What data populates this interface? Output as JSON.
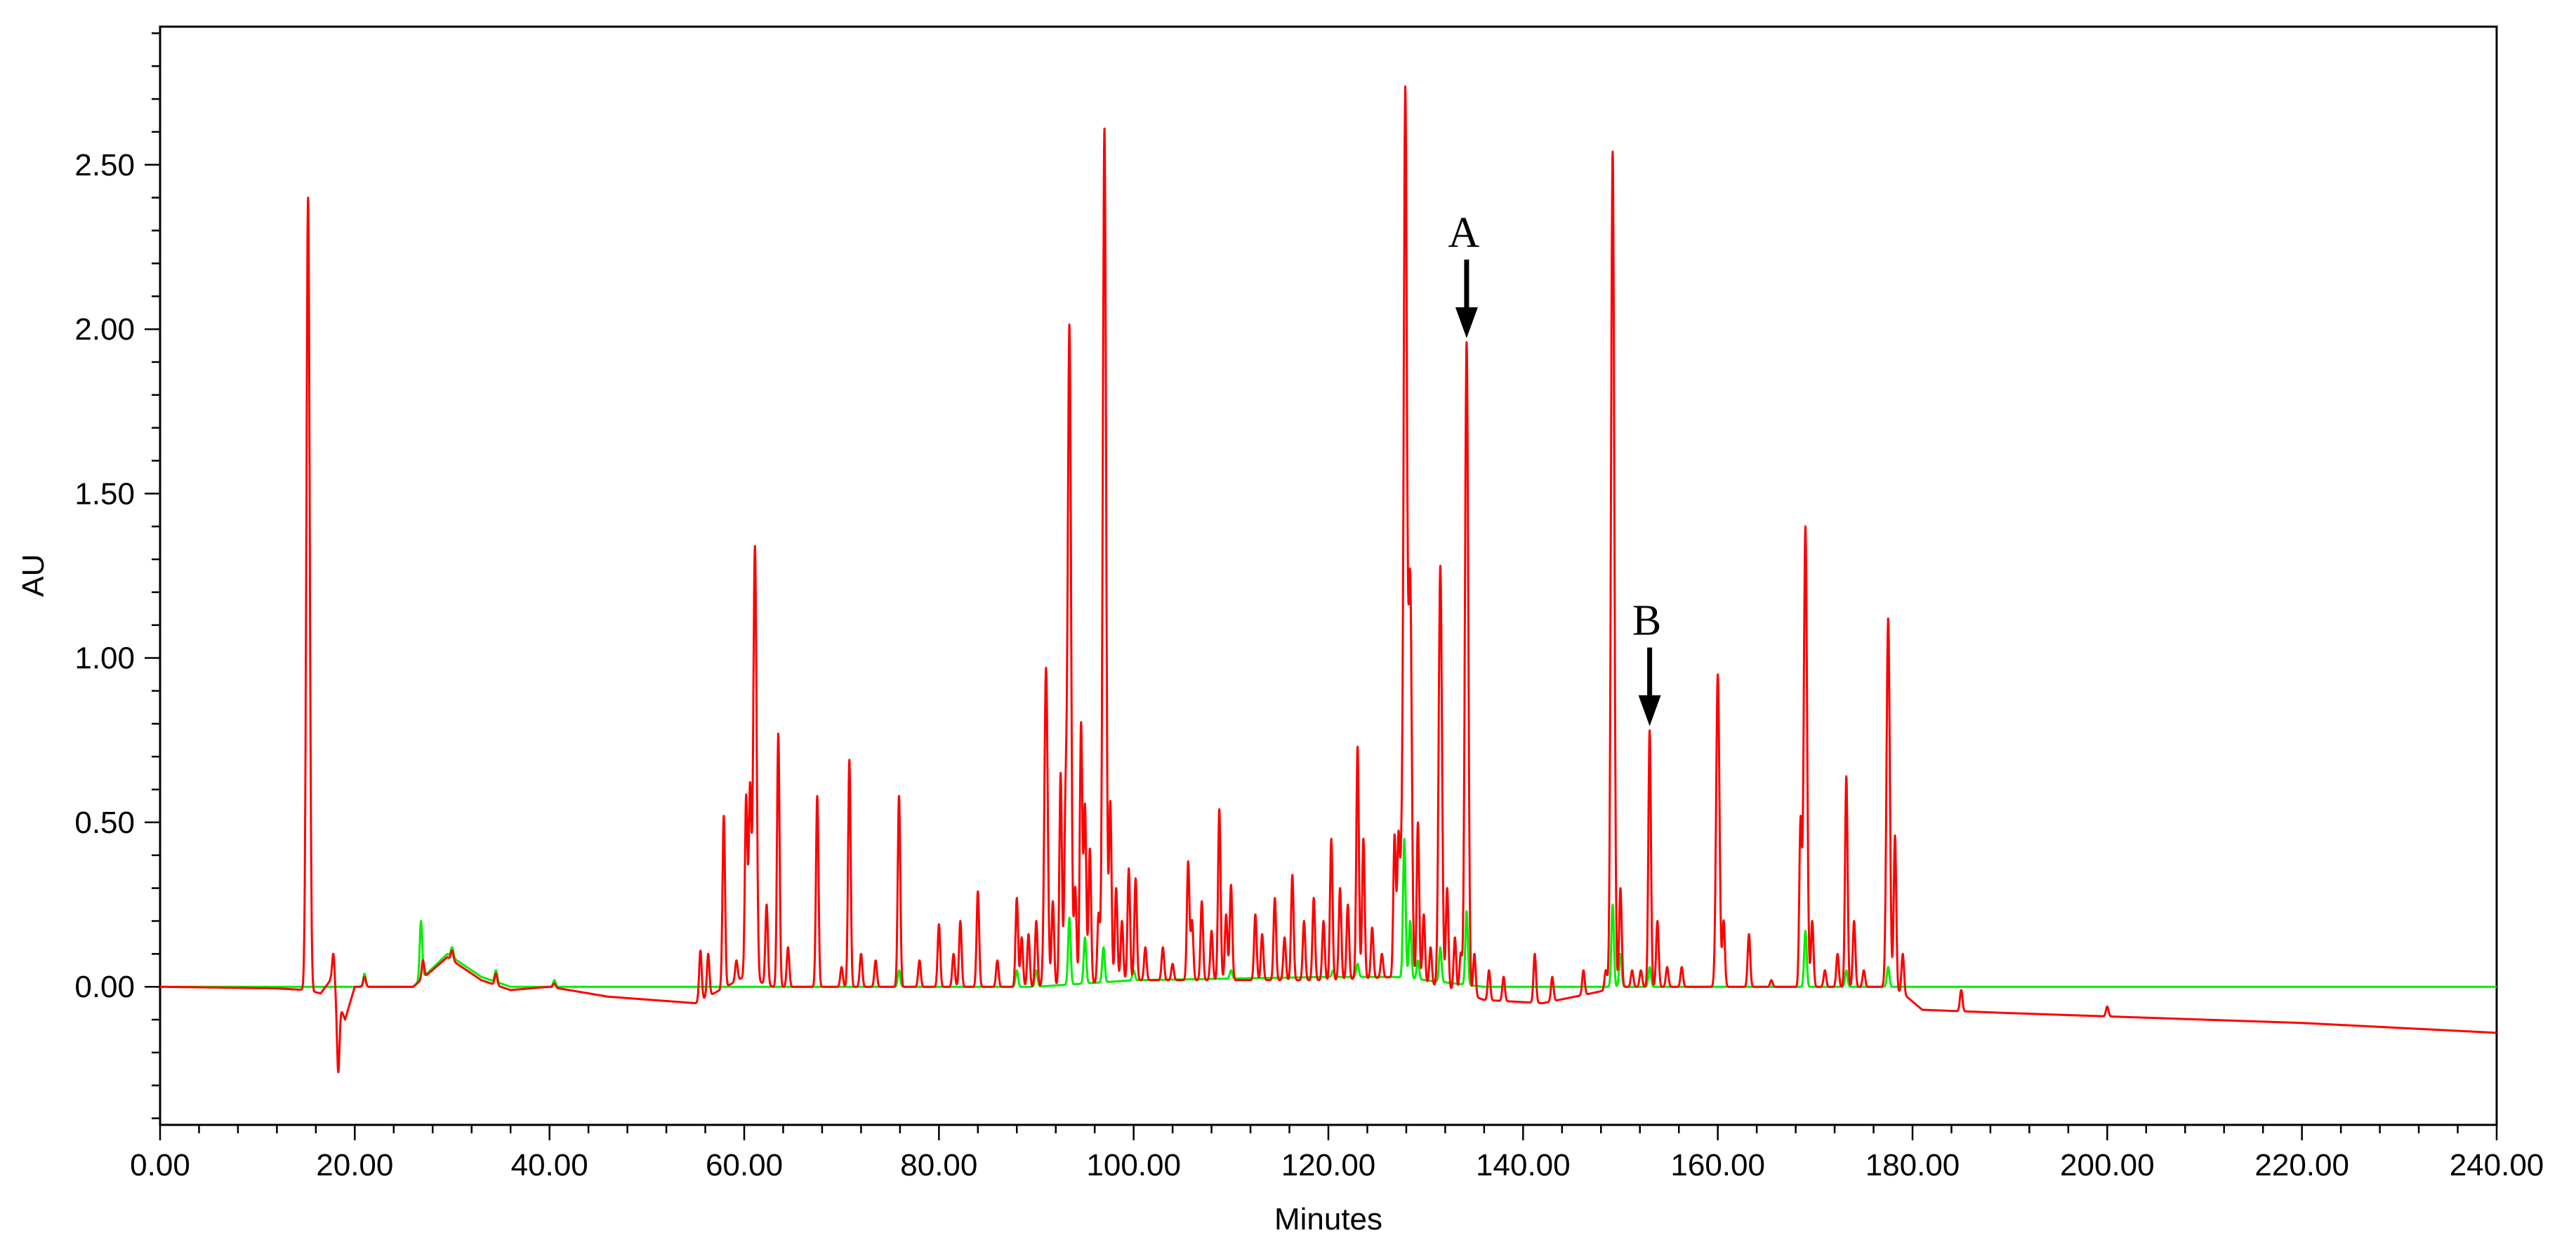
{
  "chart_data": {
    "type": "line",
    "xlabel": "Minutes",
    "ylabel": "AU",
    "xlim": [
      0,
      240
    ],
    "ylim": [
      -0.42,
      2.92
    ],
    "x_ticks": [
      "0.00",
      "20.00",
      "40.00",
      "60.00",
      "80.00",
      "100.00",
      "120.00",
      "140.00",
      "160.00",
      "180.00",
      "200.00",
      "220.00",
      "240.00"
    ],
    "y_ticks": [
      "0.00",
      "0.50",
      "1.00",
      "1.50",
      "2.00",
      "2.50"
    ],
    "grid": false,
    "legend": "none",
    "series": [
      {
        "color": "#ff0000",
        "baseline": [
          [
            0,
            0.0
          ],
          [
            12,
            -0.005
          ],
          [
            15,
            -0.01
          ],
          [
            16.5,
            -0.02
          ],
          [
            17.5,
            0.02
          ],
          [
            19,
            -0.1
          ],
          [
            20,
            0.0
          ],
          [
            26,
            0.0
          ],
          [
            29.5,
            0.09
          ],
          [
            33,
            0.02
          ],
          [
            36,
            -0.01
          ],
          [
            40,
            0.0
          ],
          [
            46,
            -0.03
          ],
          [
            55,
            -0.05
          ],
          [
            60,
            0.03
          ],
          [
            63,
            0.0
          ],
          [
            70,
            0.0
          ],
          [
            80,
            0.0
          ],
          [
            90,
            0.0
          ],
          [
            100,
            0.02
          ],
          [
            120,
            0.02
          ],
          [
            127,
            0.03
          ],
          [
            133,
            -0.01
          ],
          [
            136,
            -0.04
          ],
          [
            142,
            -0.05
          ],
          [
            147,
            -0.02
          ],
          [
            150,
            0.0
          ],
          [
            155,
            0.0
          ],
          [
            160,
            0.0
          ],
          [
            165,
            0.0
          ],
          [
            172,
            0.0
          ],
          [
            177,
            0.0
          ],
          [
            179,
            -0.02
          ],
          [
            181,
            -0.07
          ],
          [
            190,
            -0.08
          ],
          [
            200,
            -0.09
          ],
          [
            220,
            -0.11
          ],
          [
            240,
            -0.14
          ]
        ],
        "peaks": [
          [
            15.2,
            2.4
          ],
          [
            17.8,
            0.1
          ],
          [
            18.3,
            -0.26
          ],
          [
            21,
            0.03
          ],
          [
            27,
            0.08
          ],
          [
            30,
            0.11
          ],
          [
            34.5,
            0.04
          ],
          [
            40.5,
            0.01
          ],
          [
            55.5,
            0.11
          ],
          [
            56.3,
            0.1
          ],
          [
            57.9,
            0.52
          ],
          [
            59.2,
            0.08
          ],
          [
            60.2,
            0.58
          ],
          [
            60.6,
            0.6
          ],
          [
            61.1,
            1.34
          ],
          [
            62.3,
            0.25
          ],
          [
            63.5,
            0.77
          ],
          [
            64.5,
            0.12
          ],
          [
            67.5,
            0.58
          ],
          [
            70,
            0.06
          ],
          [
            70.8,
            0.69
          ],
          [
            72,
            0.1
          ],
          [
            73.5,
            0.08
          ],
          [
            75.9,
            0.58
          ],
          [
            78,
            0.08
          ],
          [
            80,
            0.19
          ],
          [
            81.5,
            0.1
          ],
          [
            82.2,
            0.2
          ],
          [
            84,
            0.29
          ],
          [
            86,
            0.08
          ],
          [
            88,
            0.27
          ],
          [
            88.5,
            0.15
          ],
          [
            89.2,
            0.16
          ],
          [
            90,
            0.2
          ],
          [
            91,
            0.97
          ],
          [
            91.7,
            0.26
          ],
          [
            92.5,
            0.65
          ],
          [
            93,
            0.5
          ],
          [
            93.4,
            2.01
          ],
          [
            94,
            0.3
          ],
          [
            94.6,
            0.8
          ],
          [
            95,
            0.55
          ],
          [
            95.5,
            0.42
          ],
          [
            96.4,
            0.22
          ],
          [
            97,
            2.61
          ],
          [
            97.6,
            0.56
          ],
          [
            98.2,
            0.3
          ],
          [
            98.8,
            0.2
          ],
          [
            99.5,
            0.36
          ],
          [
            100.2,
            0.33
          ],
          [
            101.2,
            0.12
          ],
          [
            103,
            0.12
          ],
          [
            104,
            0.07
          ],
          [
            105.6,
            0.38
          ],
          [
            106,
            0.2
          ],
          [
            107,
            0.26
          ],
          [
            108,
            0.17
          ],
          [
            108.8,
            0.54
          ],
          [
            109.5,
            0.22
          ],
          [
            110,
            0.31
          ],
          [
            112.5,
            0.22
          ],
          [
            113.2,
            0.16
          ],
          [
            114.5,
            0.27
          ],
          [
            115.5,
            0.15
          ],
          [
            116.3,
            0.34
          ],
          [
            117.5,
            0.2
          ],
          [
            118.5,
            0.27
          ],
          [
            119.5,
            0.2
          ],
          [
            120.3,
            0.45
          ],
          [
            121.2,
            0.3
          ],
          [
            122,
            0.25
          ],
          [
            123,
            0.73
          ],
          [
            123.6,
            0.45
          ],
          [
            124.5,
            0.18
          ],
          [
            125.5,
            0.1
          ],
          [
            126.8,
            0.46
          ],
          [
            127.2,
            0.45
          ],
          [
            127.5,
            0.3
          ],
          [
            127.9,
            2.72
          ],
          [
            128.4,
            1.23
          ],
          [
            129.2,
            0.5
          ],
          [
            129.8,
            0.22
          ],
          [
            130.5,
            0.12
          ],
          [
            131.5,
            1.28
          ],
          [
            132.2,
            0.3
          ],
          [
            133,
            0.15
          ],
          [
            133.6,
            0.1
          ],
          [
            134.2,
            1.96
          ],
          [
            135,
            0.1
          ],
          [
            136.5,
            0.05
          ],
          [
            138,
            0.03
          ],
          [
            141.2,
            0.1
          ],
          [
            143,
            0.03
          ],
          [
            146.2,
            0.05
          ],
          [
            148.5,
            0.05
          ],
          [
            149.2,
            2.54
          ],
          [
            150,
            0.3
          ],
          [
            151.2,
            0.05
          ],
          [
            152.1,
            0.05
          ],
          [
            153,
            0.78
          ],
          [
            153.8,
            0.2
          ],
          [
            154.8,
            0.06
          ],
          [
            156.3,
            0.06
          ],
          [
            160,
            0.95
          ],
          [
            160.6,
            0.2
          ],
          [
            163.2,
            0.16
          ],
          [
            165.5,
            0.02
          ],
          [
            168.5,
            0.5
          ],
          [
            169,
            1.4
          ],
          [
            169.7,
            0.2
          ],
          [
            171,
            0.05
          ],
          [
            172.3,
            0.1
          ],
          [
            173.2,
            0.64
          ],
          [
            174,
            0.2
          ],
          [
            175,
            0.05
          ],
          [
            177.5,
            1.12
          ],
          [
            178.2,
            0.46
          ],
          [
            179,
            0.1
          ],
          [
            185,
            -0.01
          ],
          [
            200,
            -0.06
          ]
        ]
      },
      {
        "color": "#00ee00",
        "baseline": [
          [
            0,
            0.0
          ],
          [
            12,
            0.0
          ],
          [
            15,
            0.0
          ],
          [
            26,
            0.0
          ],
          [
            29.5,
            0.1
          ],
          [
            33,
            0.03
          ],
          [
            36,
            0.0
          ],
          [
            80,
            0.0
          ],
          [
            90,
            0.0
          ],
          [
            100,
            0.02
          ],
          [
            120,
            0.03
          ],
          [
            127,
            0.03
          ],
          [
            133,
            0.01
          ],
          [
            136,
            0.0
          ],
          [
            150,
            0.0
          ],
          [
            240,
            0.0
          ]
        ],
        "peaks": [
          [
            21,
            0.04
          ],
          [
            26.8,
            0.2
          ],
          [
            30,
            0.12
          ],
          [
            34.5,
            0.05
          ],
          [
            40.5,
            0.02
          ],
          [
            75.9,
            0.05
          ],
          [
            88,
            0.05
          ],
          [
            90,
            0.05
          ],
          [
            93.4,
            0.21
          ],
          [
            95,
            0.15
          ],
          [
            96.9,
            0.12
          ],
          [
            100,
            0.05
          ],
          [
            110,
            0.05
          ],
          [
            120.5,
            0.05
          ],
          [
            123,
            0.07
          ],
          [
            127.8,
            0.45
          ],
          [
            128.4,
            0.2
          ],
          [
            129.2,
            0.08
          ],
          [
            131.5,
            0.12
          ],
          [
            134.2,
            0.23
          ],
          [
            149.2,
            0.25
          ],
          [
            150,
            0.1
          ],
          [
            153,
            0.06
          ],
          [
            169,
            0.17
          ],
          [
            173.2,
            0.05
          ],
          [
            177.5,
            0.06
          ]
        ]
      }
    ],
    "annotations": [
      {
        "label": "A",
        "x": 134.2,
        "y": 1.96
      },
      {
        "label": "B",
        "x": 153,
        "y": 0.78
      }
    ]
  }
}
